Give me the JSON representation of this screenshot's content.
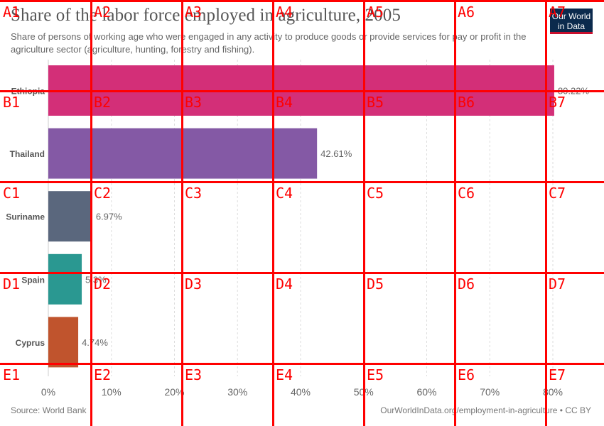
{
  "header": {
    "title": "Share of the labor force employed in agriculture, 2005",
    "subtitle": "Share of persons of working age who were engaged in any activity to produce goods or provide services for pay or profit in the agriculture sector (agriculture, hunting, forestry and fishing).",
    "logo_line1": "Our World",
    "logo_line2": "in Data"
  },
  "footer": {
    "source": "Source: World Bank",
    "url": "OurWorldInData.org/employment-in-agriculture • CC BY"
  },
  "chart_data": {
    "type": "bar",
    "orientation": "horizontal",
    "categories": [
      "Ethiopia",
      "Thailand",
      "Suriname",
      "Spain",
      "Cyprus"
    ],
    "values": [
      80.22,
      42.61,
      6.97,
      5.3,
      4.74
    ],
    "value_labels": [
      "80.22%",
      "42.61%",
      "6.97%",
      "5.3%",
      "4.74%"
    ],
    "colors": [
      "#d32f78",
      "#8459a5",
      "#5a677d",
      "#2a9891",
      "#c0542d"
    ],
    "xlim": [
      0,
      80
    ],
    "xticks": [
      0,
      10,
      20,
      30,
      40,
      50,
      60,
      70,
      80
    ],
    "xtick_labels": [
      "0%",
      "10%",
      "20%",
      "30%",
      "40%",
      "50%",
      "60%",
      "70%",
      "80%"
    ],
    "grid": true
  },
  "overlay": {
    "grid_color": "#ff0000",
    "labels": [
      [
        "A1",
        "A2",
        "A3",
        "A4",
        "A5",
        "A6",
        "A7"
      ],
      [
        "B1",
        "B2",
        "B3",
        "B4",
        "B5",
        "B6",
        "B7"
      ],
      [
        "C1",
        "C2",
        "C3",
        "C4",
        "C5",
        "C6",
        "C7"
      ],
      [
        "D1",
        "D2",
        "D3",
        "D4",
        "D5",
        "D6",
        "D7"
      ],
      [
        "E1",
        "E2",
        "E3",
        "E4",
        "E5",
        "E6",
        "E7"
      ]
    ]
  }
}
